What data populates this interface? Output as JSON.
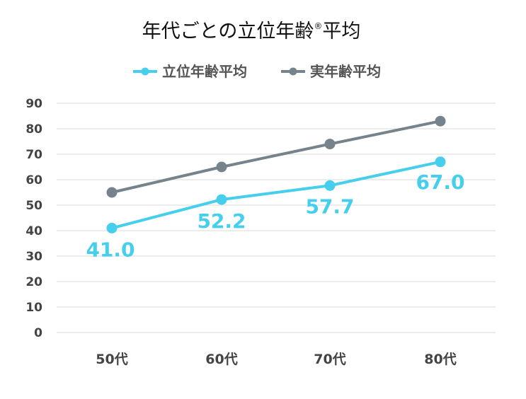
{
  "chart_data": {
    "type": "line",
    "title": "年代ごとの立位年齢",
    "title_mark": "®",
    "title_suffix": "平均",
    "xlabel": "",
    "ylabel": "",
    "categories": [
      "50代",
      "60代",
      "70代",
      "80代"
    ],
    "ylim": [
      0,
      90
    ],
    "yticks": [
      "0",
      "10",
      "20",
      "30",
      "40",
      "50",
      "60",
      "70",
      "80",
      "90"
    ],
    "grid": true,
    "legend_position": "top",
    "series": [
      {
        "name": "立位年齢平均",
        "values": [
          41.0,
          52.2,
          57.7,
          67.0
        ],
        "labels": [
          "41.0",
          "52.2",
          "57.7",
          "67.0"
        ],
        "color": "#45CFEC"
      },
      {
        "name": "実年齢平均",
        "values": [
          55,
          65,
          74,
          83
        ],
        "color": "#76838C"
      }
    ]
  }
}
